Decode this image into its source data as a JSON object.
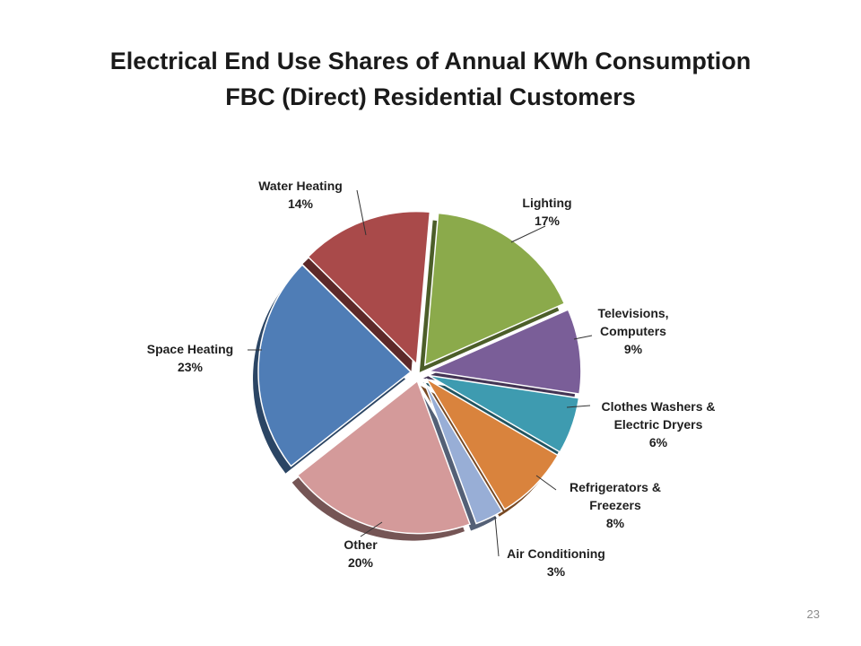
{
  "slide": {
    "title_line1": "Electrical End Use Shares of Annual KWh Consumption",
    "title_line2": "FBC (Direct) Residential Customers",
    "page_number": "23"
  },
  "chart_data": {
    "type": "pie",
    "exploded": true,
    "style": "3d",
    "title": "",
    "slices": [
      {
        "name": "Lighting",
        "value": 17,
        "pct_label": "17%",
        "label_lines": [
          "Lighting"
        ],
        "color": "#8BAA4B"
      },
      {
        "name": "Televisions, Computers",
        "value": 9,
        "pct_label": "9%",
        "label_lines": [
          "Televisions,",
          "Computers"
        ],
        "color": "#7A5E98"
      },
      {
        "name": "Clothes Washers & Electric Dryers",
        "value": 6,
        "pct_label": "6%",
        "label_lines": [
          "Clothes Washers &",
          "Electric Dryers"
        ],
        "color": "#3E9BB0"
      },
      {
        "name": "Refrigerators & Freezers",
        "value": 8,
        "pct_label": "8%",
        "label_lines": [
          "Refrigerators &",
          "Freezers"
        ],
        "color": "#D9833D"
      },
      {
        "name": "Air Conditioning",
        "value": 3,
        "pct_label": "3%",
        "label_lines": [
          "Air Conditioning"
        ],
        "color": "#98AED6"
      },
      {
        "name": "Other",
        "value": 20,
        "pct_label": "20%",
        "label_lines": [
          "Other"
        ],
        "color": "#D49A9A"
      },
      {
        "name": "Space Heating",
        "value": 23,
        "pct_label": "23%",
        "label_lines": [
          "Space Heating"
        ],
        "color": "#4F7DB6"
      },
      {
        "name": "Water Heating",
        "value": 14,
        "pct_label": "14%",
        "label_lines": [
          "Water Heating"
        ],
        "color": "#A94A4A"
      }
    ]
  }
}
